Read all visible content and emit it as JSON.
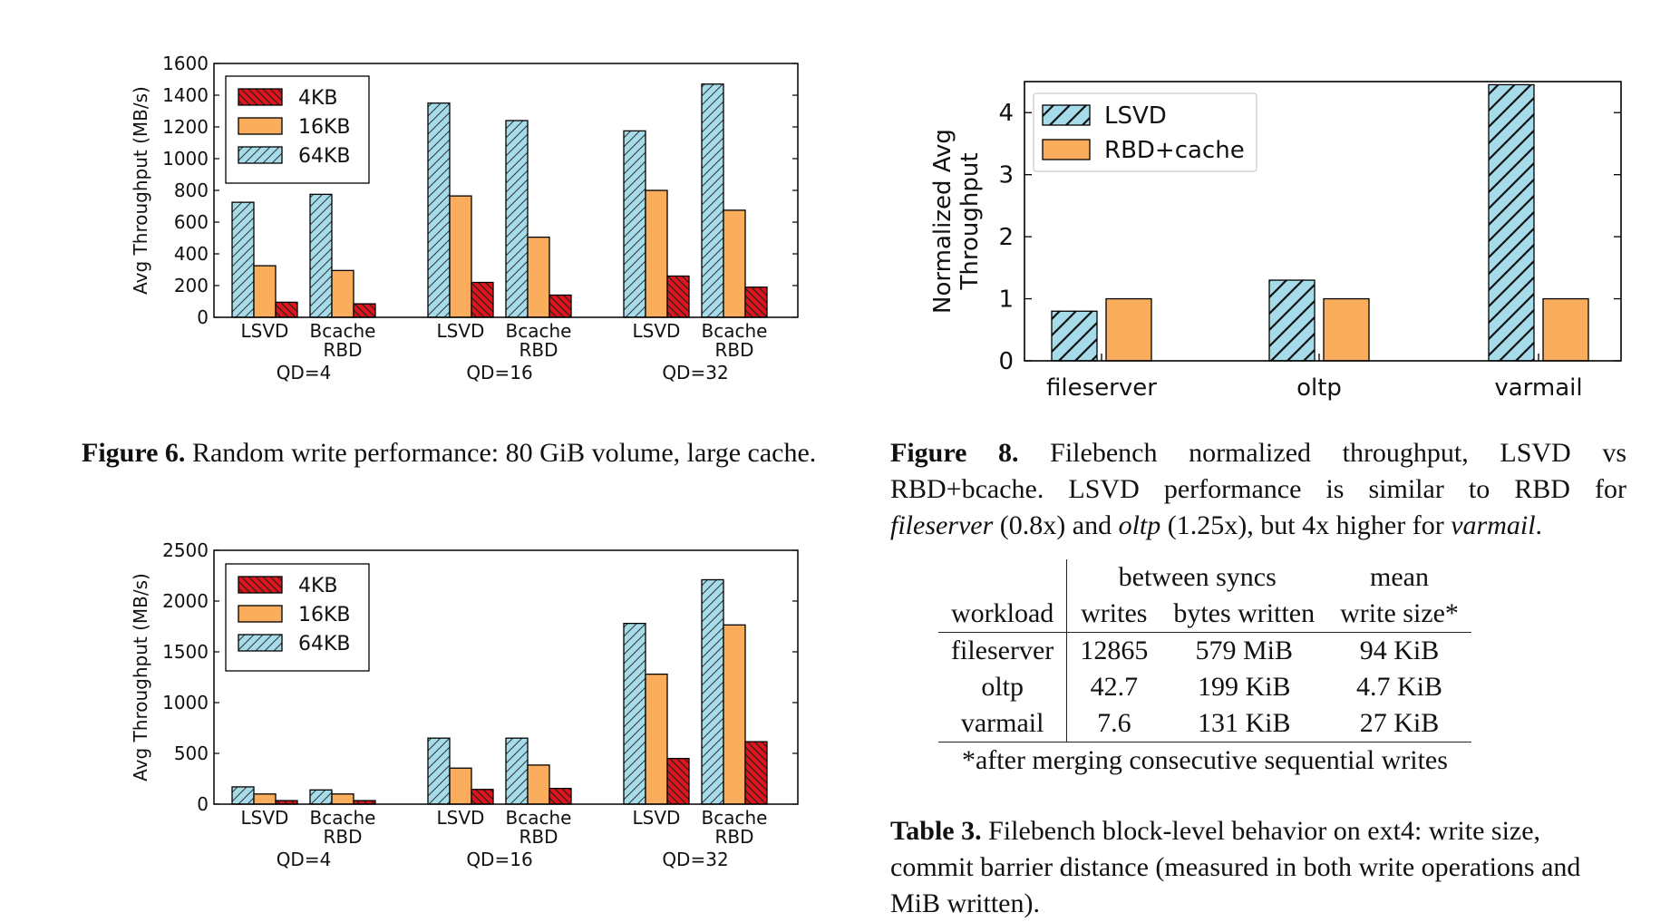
{
  "chart_data": [
    {
      "type": "bar",
      "ylabel": "Avg Throughput (MB/s)",
      "xlabel": "",
      "ylim": [
        0,
        1600
      ],
      "yticks": [
        0,
        200,
        400,
        600,
        800,
        1000,
        1200,
        1400,
        1600
      ],
      "legend_position": "top-left",
      "groups": [
        {
          "label": "QD=4",
          "categories": [
            "LSVD",
            "Bcache\nRBD"
          ]
        },
        {
          "label": "QD=16",
          "categories": [
            "LSVD",
            "Bcache\nRBD"
          ]
        },
        {
          "label": "QD=32",
          "categories": [
            "LSVD",
            "Bcache\nRBD"
          ]
        }
      ],
      "series": [
        {
          "name": "64KB",
          "color": "#a6dcea",
          "hatch": "//",
          "values": [
            725,
            775,
            1350,
            1240,
            1175,
            1470
          ]
        },
        {
          "name": "16KB",
          "color": "#fbad5e",
          "hatch": "",
          "values": [
            325,
            295,
            765,
            505,
            800,
            675
          ]
        },
        {
          "name": "4KB",
          "color": "#e0141c",
          "hatch": "\\\\",
          "values": [
            95,
            85,
            220,
            140,
            260,
            190
          ]
        }
      ],
      "legend_order": [
        "4KB",
        "16KB",
        "64KB"
      ]
    },
    {
      "type": "bar",
      "ylabel": "Avg Throughput (MB/s)",
      "xlabel": "",
      "ylim": [
        0,
        2500
      ],
      "yticks": [
        0,
        500,
        1000,
        1500,
        2000,
        2500
      ],
      "legend_position": "top-left",
      "groups": [
        {
          "label": "QD=4",
          "categories": [
            "LSVD",
            "Bcache\nRBD"
          ]
        },
        {
          "label": "QD=16",
          "categories": [
            "LSVD",
            "Bcache\nRBD"
          ]
        },
        {
          "label": "QD=32",
          "categories": [
            "LSVD",
            "Bcache\nRBD"
          ]
        }
      ],
      "series": [
        {
          "name": "64KB",
          "color": "#a6dcea",
          "hatch": "//",
          "values": [
            170,
            140,
            650,
            650,
            1780,
            2210
          ]
        },
        {
          "name": "16KB",
          "color": "#fbad5e",
          "hatch": "",
          "values": [
            100,
            100,
            355,
            385,
            1280,
            1765
          ]
        },
        {
          "name": "4KB",
          "color": "#e0141c",
          "hatch": "\\\\",
          "values": [
            35,
            35,
            145,
            155,
            450,
            615
          ]
        }
      ],
      "legend_order": [
        "4KB",
        "16KB",
        "64KB"
      ]
    },
    {
      "type": "bar",
      "ylabel": "Normalized Avg\nThroughput",
      "xlabel": "",
      "ylim": [
        0,
        4.5
      ],
      "yticks": [
        0,
        1,
        2,
        3,
        4
      ],
      "legend_position": "top-left",
      "categories": [
        "fileserver",
        "oltp",
        "varmail"
      ],
      "series": [
        {
          "name": "LSVD",
          "color": "#a6dcea",
          "hatch": "//",
          "values": [
            0.8,
            1.3,
            4.45
          ]
        },
        {
          "name": "RBD+cache",
          "color": "#fbad5e",
          "hatch": "",
          "values": [
            1.0,
            1.0,
            1.0
          ]
        }
      ],
      "legend_order": [
        "LSVD",
        "RBD+cache"
      ]
    }
  ],
  "captions": {
    "fig6": {
      "label": "Figure 6.",
      "text": "Random write performance: 80 GiB volume, large cache."
    },
    "fig8": {
      "label": "Figure 8.",
      "line1": "Filebench normalized throughput, LSVD vs",
      "line2": "RBD+bcache. LSVD performance is similar to RBD for",
      "line3_a": "fileserver",
      "line3_b": " (0.8x) and ",
      "line3_c": "oltp",
      "line3_d": " (1.25x), but 4x higher for ",
      "line3_e": "varmail",
      "line3_f": "."
    },
    "table3": {
      "label": "Table 3.",
      "text": "Filebench block-level behavior on ext4: write size, commit barrier distance (measured in both write operations and MiB written)."
    }
  },
  "table3": {
    "header_top": {
      "between": "between syncs",
      "mean": "mean"
    },
    "header": {
      "workload": "workload",
      "writes": "writes",
      "bytes": "bytes written",
      "size": "write size*"
    },
    "rows": [
      {
        "workload": "fileserver",
        "writes": "12865",
        "bytes": "579 MiB",
        "size": "94 KiB"
      },
      {
        "workload": "oltp",
        "writes": "42.7",
        "bytes": "199 KiB",
        "size": "4.7 KiB"
      },
      {
        "workload": "varmail",
        "writes": "7.6",
        "bytes": "131 KiB",
        "size": "27 KiB"
      }
    ],
    "footnote": "*after merging consecutive sequential writes"
  }
}
